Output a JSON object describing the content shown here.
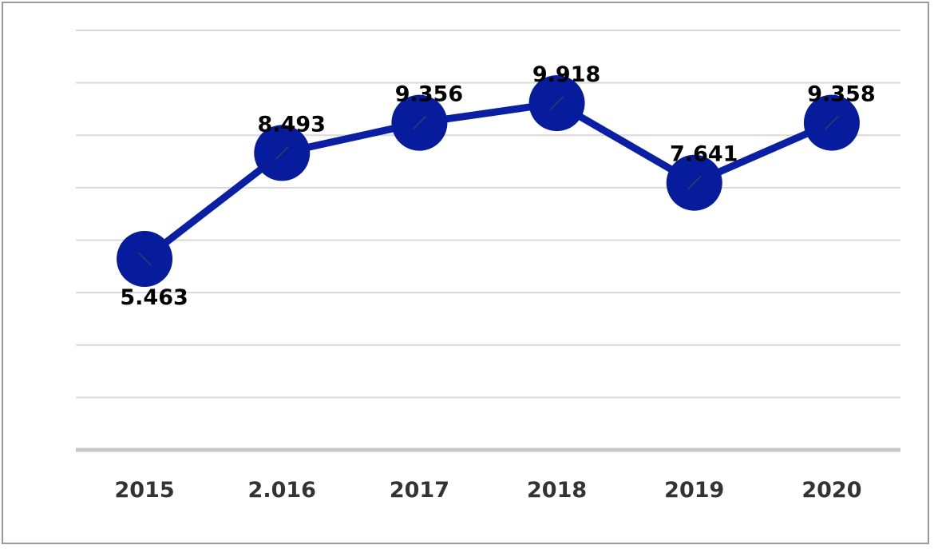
{
  "chart_data": {
    "type": "line",
    "categories": [
      "2015",
      "2.016",
      "2017",
      "2018",
      "2019",
      "2020"
    ],
    "values": [
      5.463,
      8.493,
      9.356,
      9.918,
      7.641,
      9.358
    ],
    "data_labels": [
      "5.463",
      "8.493",
      "9.356",
      "9.918",
      "7.641",
      "9.358"
    ],
    "ylim": [
      0,
      12
    ],
    "grid": true,
    "legend": "none",
    "colors": {
      "series": "#0a1fa3",
      "grid": "#d9d9d9",
      "baseline": "#c8c8c8",
      "tick_text": "#333333"
    }
  }
}
